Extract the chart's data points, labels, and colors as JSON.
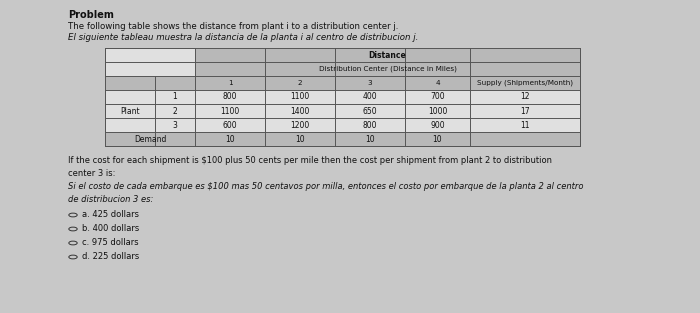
{
  "title_bold": "Problem",
  "line1": "The following table shows the distance from plant i to a distribution center j.",
  "line2": "El siguiente tableau muestra la distancia de la planta i al centro de distribucion j.",
  "table_header1": "Distance",
  "table_header2": "Distribution Center (Distance in Miles)",
  "col_headers": [
    "1",
    "2",
    "3",
    "4",
    "Supply (Shipments/Month)"
  ],
  "row_labels_inner": [
    "1",
    "2",
    "3"
  ],
  "demand_label": "Demand",
  "table_data": [
    [
      800,
      1100,
      400,
      700,
      12
    ],
    [
      1100,
      1400,
      650,
      1000,
      17
    ],
    [
      600,
      1200,
      800,
      900,
      11
    ]
  ],
  "demand_row": [
    10,
    10,
    10,
    10
  ],
  "question_en": "If the cost for each shipment is $100 plus 50 cents per mile then the cost per shipment from plant 2 to distribution\ncenter 3 is:",
  "question_es": "Si el costo de cada embarque es $100 mas 50 centavos por milla, entonces el costo por embarque de la planta 2 al centro\nde distribucion 3 es:",
  "options": [
    "a. 425 dollars",
    "b. 400 dollars",
    "c. 975 dollars",
    "d. 225 dollars"
  ],
  "bg_color": "#c8c8c8",
  "table_bg": "#e0e0e0",
  "table_header_bg": "#b8b8b8",
  "text_color": "#111111"
}
